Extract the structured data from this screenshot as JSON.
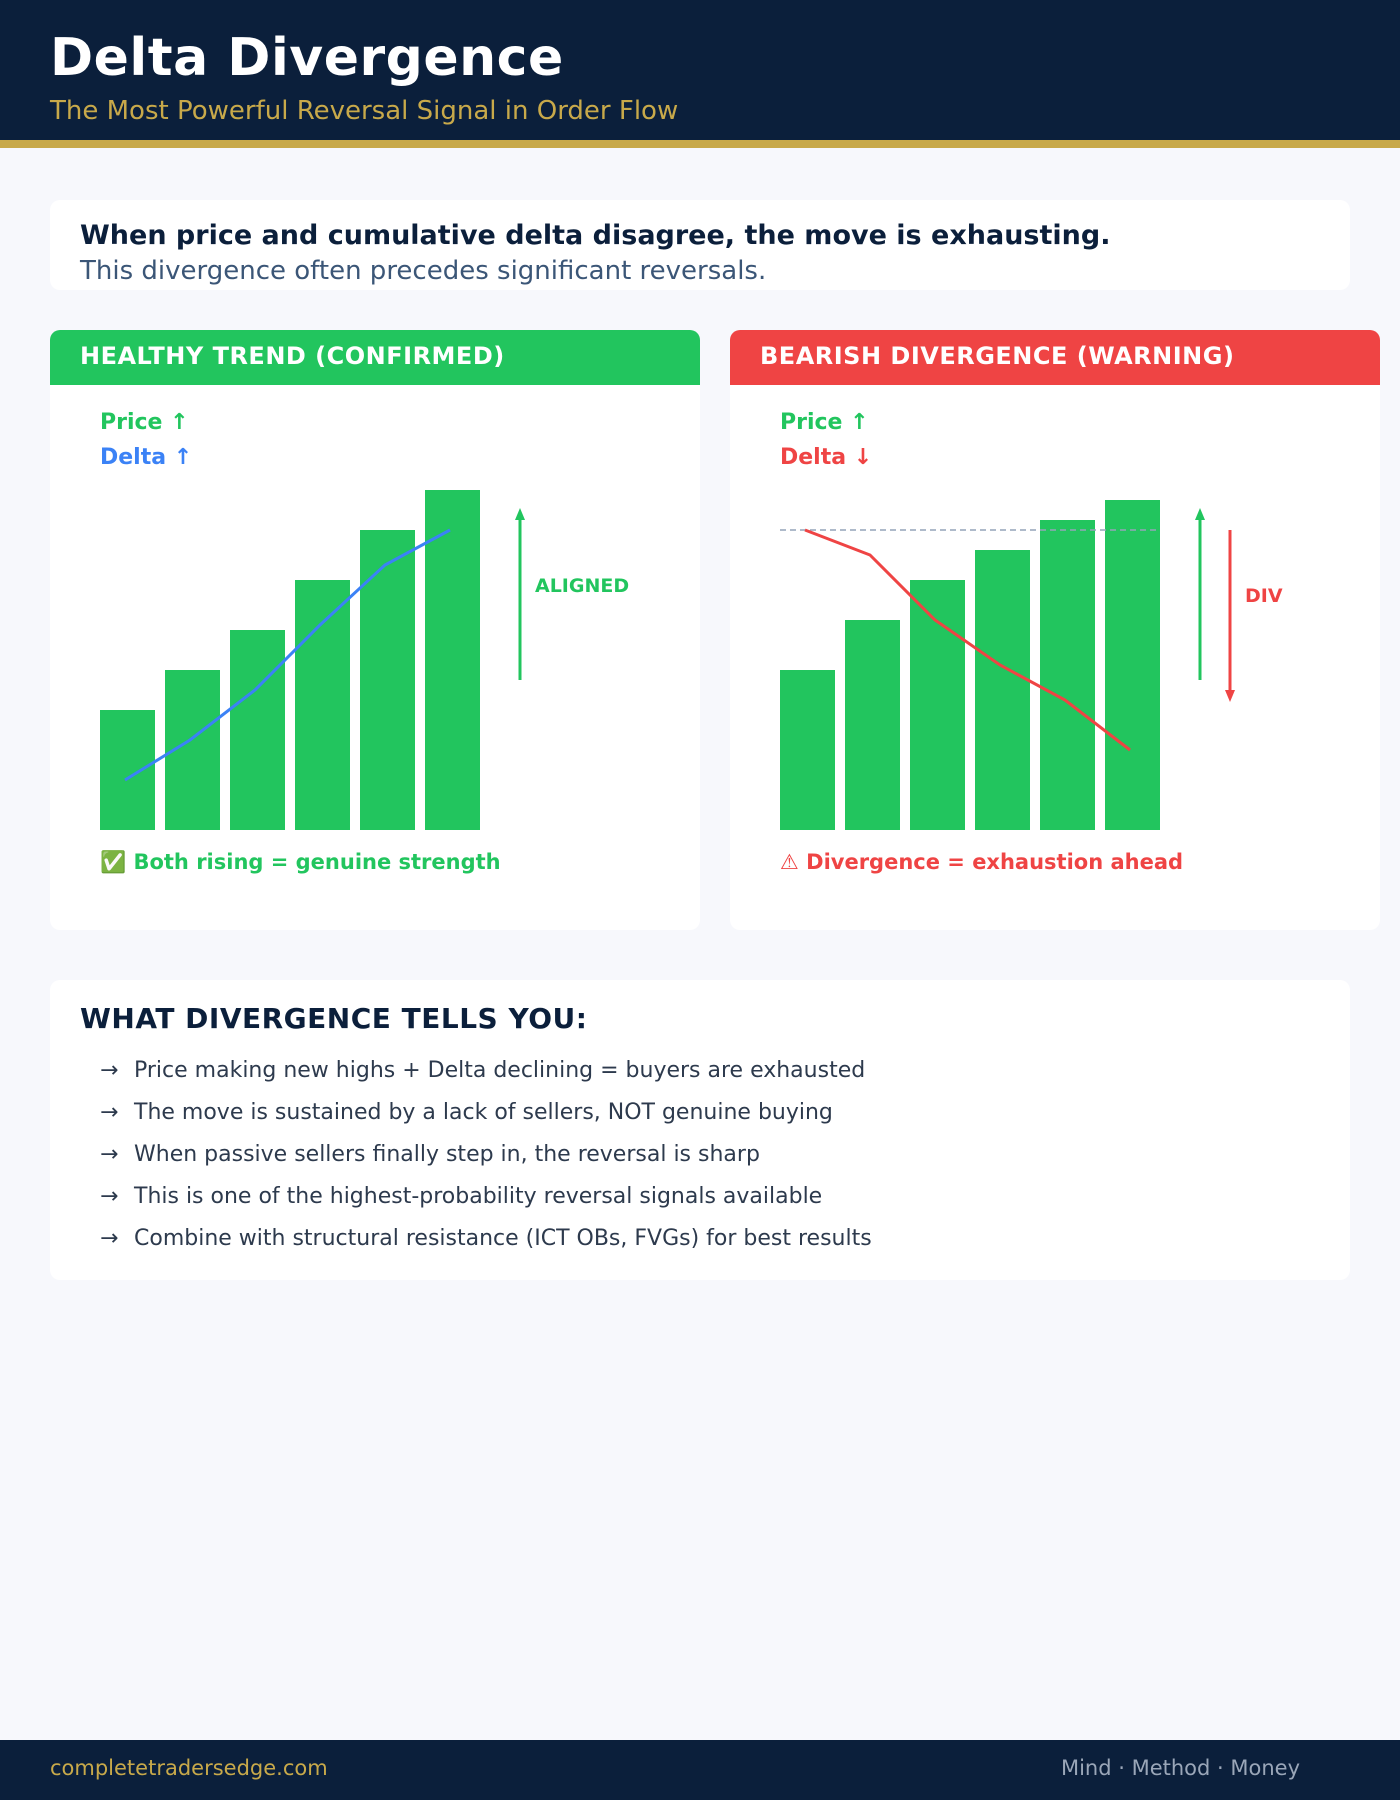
{
  "header": {
    "title": "Delta Divergence",
    "subtitle": "The Most Powerful Reversal Signal in Order Flow"
  },
  "intro": {
    "lead": "When price and cumulative delta disagree, the move is exhausting.",
    "sub": "This divergence often precedes significant reversals."
  },
  "panels": {
    "left": {
      "heading": "HEALTHY TREND (CONFIRMED)",
      "price_label": "Price ↑",
      "delta_label": "Delta ↑",
      "annotation": "ALIGNED",
      "caption": "✅ Both rising = genuine strength",
      "price_color": "#22c55e",
      "delta_color": "#3b82f6"
    },
    "right": {
      "heading": "BEARISH DIVERGENCE (WARNING)",
      "price_label": "Price ↑",
      "delta_label": "Delta ↓",
      "annotation": "DIV",
      "caption": "⚠ Divergence = exhaustion ahead",
      "price_color": "#22c55e",
      "delta_color": "#ef4444"
    }
  },
  "chart_data": [
    {
      "type": "bar",
      "bars": [
        12,
        16,
        20,
        25,
        30,
        34
      ],
      "line": [
        5,
        9,
        14,
        20.5,
        26.5,
        30
      ],
      "ylim": [
        0,
        40
      ]
    },
    {
      "type": "bar",
      "bars": [
        16,
        21,
        25,
        28,
        31,
        33
      ],
      "line": [
        30,
        27.5,
        21,
        16.5,
        13,
        8
      ],
      "reference": 30,
      "ylim": [
        0,
        40
      ]
    }
  ],
  "insights": {
    "title": "WHAT DIVERGENCE TELLS YOU:",
    "arrow": "→",
    "items": [
      "Price making new highs + Delta declining = buyers are exhausted",
      "The move is sustained by a lack of sellers, NOT genuine buying",
      "When passive sellers finally step in, the reversal is sharp",
      "This is one of the highest-probability reversal signals available",
      "Combine with structural resistance (ICT OBs, FVGs) for best results"
    ]
  },
  "footer": {
    "site": "completetradersedge.com",
    "tagline": "Mind · Method · Money"
  },
  "colors": {
    "navy": "#0b1f3b",
    "gold": "#c8a94a",
    "green": "#22c55e",
    "red": "#ef4444",
    "blue": "#3b82f6"
  }
}
